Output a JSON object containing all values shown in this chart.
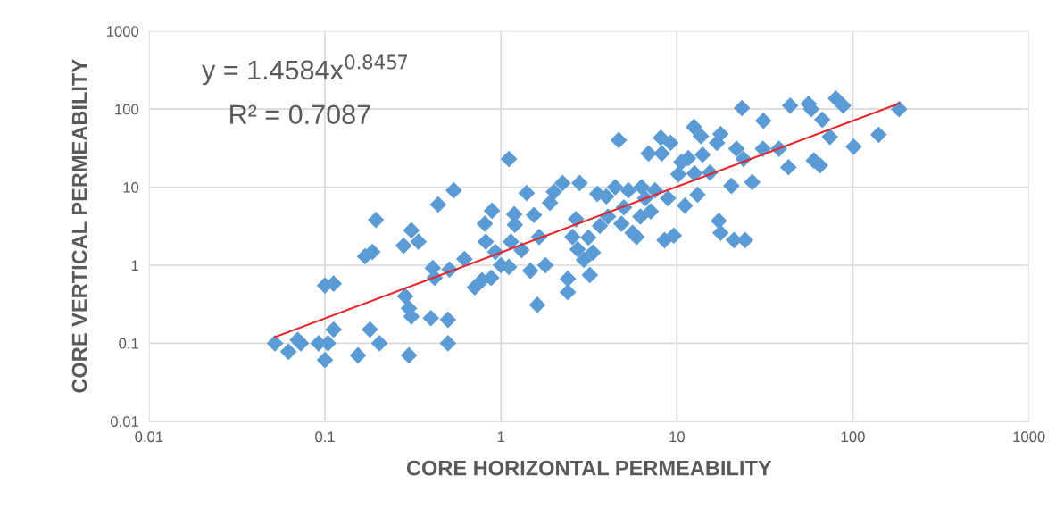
{
  "chart_data": {
    "type": "scatter",
    "xlabel": "CORE HORIZONTAL PERMEABILITY",
    "ylabel": "CORE VERTICAL PERMEABILITY",
    "log": "xy",
    "grid": true,
    "xlim": [
      0.01,
      1000
    ],
    "xticks": [
      0.01,
      0.1,
      1,
      10,
      100,
      1000
    ],
    "ylim": [
      0.01,
      1000
    ],
    "yticks": [
      0.01,
      0.1,
      1,
      10,
      100,
      1000
    ],
    "annotations": [
      "y = 1.4584x$^{0.8457}$",
      "R² = 0.7087"
    ],
    "series": [
      {
        "marker": "diamond",
        "color": "#5b9bd5",
        "x": [
          0.052,
          0.062,
          0.07,
          0.073,
          0.092,
          0.1,
          0.104,
          0.1,
          0.112,
          0.112,
          0.154,
          0.18,
          0.204,
          0.169,
          0.186,
          0.195,
          0.28,
          0.31,
          0.34,
          0.286,
          0.3,
          0.31,
          0.3,
          0.4,
          0.41,
          0.42,
          0.44,
          0.5,
          0.5,
          0.51,
          0.54,
          0.62,
          0.71,
          0.78,
          0.82,
          0.81,
          0.88,
          0.89,
          0.93,
          1.0,
          1.11,
          1.11,
          1.14,
          1.19,
          1.2,
          1.31,
          1.4,
          1.47,
          1.54,
          1.61,
          1.65,
          1.79,
          1.9,
          2.0,
          2.24,
          2.4,
          2.4,
          2.55,
          2.67,
          2.73,
          2.8,
          2.96,
          3.14,
          3.2,
          3.33,
          3.53,
          3.65,
          3.97,
          4.06,
          4.46,
          4.67,
          4.84,
          5.0,
          5.3,
          5.6,
          5.9,
          6.2,
          6.3,
          6.6,
          6.9,
          7.1,
          7.5,
          8.1,
          8.2,
          8.5,
          8.9,
          9.2,
          9.6,
          10.2,
          10.6,
          11.1,
          11.6,
          12.5,
          12.6,
          13.1,
          13.7,
          14.0,
          15.4,
          16.9,
          17.7,
          17.3,
          17.7,
          20.4,
          21.1,
          21.8,
          23.4,
          23.9,
          24.4,
          26.8,
          31,
          30.8,
          38,
          43,
          44,
          56,
          58,
          60,
          65,
          67,
          74,
          80,
          88,
          101,
          140,
          183
        ],
        "values": [
          0.1,
          0.078,
          0.11,
          0.1,
          0.1,
          0.061,
          0.1,
          0.55,
          0.58,
          0.15,
          0.07,
          0.15,
          0.1,
          1.3,
          1.48,
          3.8,
          1.78,
          2.8,
          2.0,
          0.4,
          0.28,
          0.22,
          0.07,
          0.21,
          0.92,
          0.69,
          6.0,
          0.2,
          0.1,
          0.88,
          9.1,
          1.2,
          0.52,
          0.64,
          2.0,
          3.4,
          0.69,
          5.0,
          1.48,
          1.0,
          23,
          0.95,
          2.0,
          4.5,
          3.3,
          1.56,
          8.4,
          0.85,
          4.4,
          0.31,
          2.3,
          1.0,
          6.3,
          8.7,
          11.3,
          0.67,
          0.45,
          2.3,
          3.9,
          1.6,
          11.3,
          1.17,
          2.26,
          0.75,
          1.45,
          8.2,
          3.2,
          7.6,
          4.2,
          10,
          40,
          3.4,
          5.5,
          9.1,
          2.6,
          2.3,
          4.2,
          10,
          7.2,
          27,
          4.9,
          9.1,
          43,
          27,
          2.1,
          7.2,
          37,
          2.4,
          14.6,
          21,
          5.8,
          23.5,
          59,
          15,
          8,
          45,
          26,
          15.4,
          37,
          48,
          3.7,
          2.6,
          10.4,
          2.1,
          31,
          103,
          23,
          2.1,
          11.6,
          71,
          31,
          31,
          18,
          111,
          117,
          100,
          22,
          19,
          73,
          44,
          137,
          111,
          33,
          47,
          100
        ]
      },
      {
        "type": "line",
        "color": "#e8262a",
        "x": [
          0.052,
          183
        ],
        "values": [
          0.12,
          118
        ]
      }
    ]
  }
}
